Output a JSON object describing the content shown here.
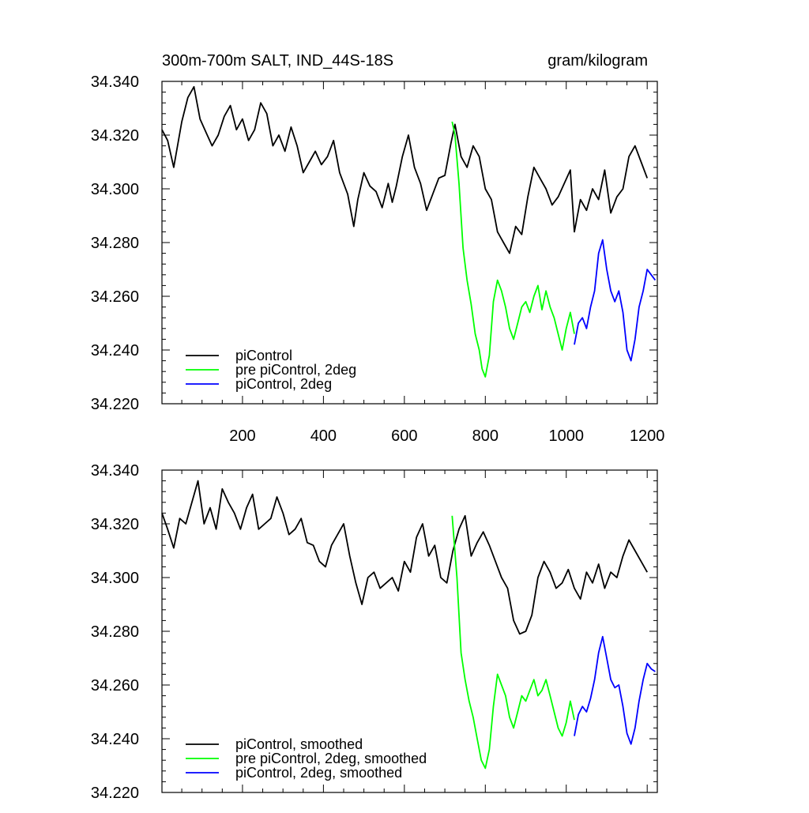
{
  "chart_data": [
    {
      "type": "line",
      "title": "300m-700m SALT, IND_44S-18S",
      "units": "gram/kilogram",
      "xlabel": "",
      "ylabel": "",
      "xlim": [
        1,
        1225
      ],
      "ylim": [
        34.22,
        34.34
      ],
      "x_ticks": [
        200,
        400,
        600,
        800,
        1000,
        1200
      ],
      "x_tick_labels": [
        "200",
        "400",
        "600",
        "800",
        "1000",
        "1200"
      ],
      "y_ticks": [
        34.22,
        34.24,
        34.26,
        34.28,
        34.3,
        34.32,
        34.34
      ],
      "y_tick_labels": [
        "34.220",
        "34.240",
        "34.260",
        "34.280",
        "34.300",
        "34.320",
        "34.340"
      ],
      "grid": false,
      "legend_position": "bottom-left",
      "legend": [
        "piControl",
        "pre piControl, 2deg",
        "piControl, 2deg"
      ],
      "series": [
        {
          "name": "piControl",
          "color": "#000000",
          "x": [
            1,
            15,
            30,
            50,
            65,
            80,
            95,
            110,
            125,
            140,
            155,
            170,
            185,
            200,
            215,
            230,
            245,
            260,
            275,
            290,
            305,
            320,
            335,
            350,
            365,
            380,
            395,
            410,
            425,
            440,
            460,
            475,
            485,
            500,
            515,
            530,
            545,
            560,
            570,
            580,
            595,
            610,
            625,
            640,
            655,
            670,
            685,
            700,
            715,
            725,
            740,
            755,
            770,
            785,
            800,
            815,
            830,
            845,
            860,
            875,
            890,
            905,
            920,
            935,
            950,
            965,
            980,
            995,
            1010,
            1020,
            1035,
            1050,
            1065,
            1080,
            1095,
            1110,
            1125,
            1140,
            1155,
            1170,
            1185,
            1200
          ],
          "y": [
            34.322,
            34.318,
            34.308,
            34.325,
            34.334,
            34.338,
            34.326,
            34.321,
            34.316,
            34.32,
            34.327,
            34.331,
            34.322,
            34.326,
            34.318,
            34.322,
            34.332,
            34.328,
            34.316,
            34.32,
            34.314,
            34.323,
            34.316,
            34.306,
            34.31,
            34.314,
            34.309,
            34.312,
            34.318,
            34.306,
            34.298,
            34.286,
            34.296,
            34.306,
            34.301,
            34.299,
            34.293,
            34.302,
            34.295,
            34.301,
            34.312,
            34.32,
            34.308,
            34.302,
            34.292,
            34.298,
            34.304,
            34.305,
            34.317,
            34.324,
            34.312,
            34.308,
            34.316,
            34.312,
            34.3,
            34.296,
            34.284,
            34.28,
            34.276,
            34.286,
            34.283,
            34.297,
            34.308,
            34.304,
            34.3,
            34.294,
            34.297,
            34.302,
            34.307,
            34.284,
            34.296,
            34.292,
            34.3,
            34.296,
            34.307,
            34.291,
            34.297,
            34.3,
            34.312,
            34.316,
            34.31,
            34.304
          ]
        },
        {
          "name": "pre piControl, 2deg",
          "color": "#00ff00",
          "x": [
            718,
            725,
            735,
            745,
            755,
            765,
            775,
            785,
            792,
            800,
            810,
            820,
            830,
            840,
            850,
            860,
            870,
            880,
            890,
            900,
            910,
            920,
            930,
            940,
            950,
            960,
            970,
            980,
            990,
            1000,
            1010,
            1020
          ],
          "y": [
            34.325,
            34.32,
            34.302,
            34.278,
            34.266,
            34.257,
            34.246,
            34.24,
            34.233,
            34.23,
            34.238,
            34.258,
            34.266,
            34.262,
            34.256,
            34.248,
            34.244,
            34.25,
            34.256,
            34.258,
            34.254,
            34.26,
            34.264,
            34.255,
            34.262,
            34.256,
            34.252,
            34.246,
            34.24,
            34.248,
            34.254,
            34.246
          ]
        },
        {
          "name": "piControl, 2deg",
          "color": "#0000ff",
          "x": [
            1020,
            1030,
            1040,
            1050,
            1060,
            1070,
            1080,
            1090,
            1100,
            1110,
            1120,
            1130,
            1140,
            1150,
            1160,
            1170,
            1180,
            1190,
            1200,
            1210,
            1220
          ],
          "y": [
            34.242,
            34.25,
            34.252,
            34.248,
            34.256,
            34.262,
            34.276,
            34.281,
            34.27,
            34.262,
            34.258,
            34.262,
            34.254,
            34.24,
            34.236,
            34.244,
            34.256,
            34.262,
            34.27,
            34.268,
            34.266
          ]
        }
      ]
    },
    {
      "type": "line",
      "title": "",
      "xlabel": "",
      "ylabel": "",
      "xlim": [
        1,
        1225
      ],
      "ylim": [
        34.22,
        34.34
      ],
      "y_ticks": [
        34.22,
        34.24,
        34.26,
        34.28,
        34.3,
        34.32,
        34.34
      ],
      "y_tick_labels": [
        "34.220",
        "34.240",
        "34.260",
        "34.280",
        "34.300",
        "34.320",
        "34.340"
      ],
      "grid": false,
      "legend_position": "bottom-left",
      "legend": [
        "piControl, smoothed",
        "pre piControl, 2deg, smoothed",
        "piControl, 2deg, smoothed"
      ],
      "series": [
        {
          "name": "piControl, smoothed",
          "color": "#000000",
          "x": [
            1,
            15,
            30,
            45,
            60,
            75,
            90,
            105,
            120,
            135,
            150,
            165,
            180,
            195,
            210,
            225,
            240,
            255,
            270,
            285,
            300,
            315,
            330,
            345,
            360,
            375,
            390,
            405,
            420,
            435,
            450,
            465,
            480,
            495,
            510,
            525,
            540,
            555,
            570,
            585,
            600,
            615,
            630,
            645,
            660,
            675,
            690,
            705,
            720,
            735,
            750,
            765,
            780,
            795,
            810,
            825,
            840,
            855,
            870,
            885,
            900,
            915,
            930,
            945,
            960,
            975,
            990,
            1005,
            1020,
            1035,
            1050,
            1065,
            1080,
            1095,
            1110,
            1125,
            1140,
            1155,
            1170,
            1185,
            1200
          ],
          "y": [
            34.324,
            34.318,
            34.311,
            34.322,
            34.32,
            34.328,
            34.336,
            34.32,
            34.326,
            34.318,
            34.333,
            34.328,
            34.324,
            34.318,
            34.326,
            34.331,
            34.318,
            34.32,
            34.322,
            34.33,
            34.324,
            34.316,
            34.318,
            34.322,
            34.313,
            34.312,
            34.306,
            34.304,
            34.312,
            34.316,
            34.32,
            34.308,
            34.298,
            34.29,
            34.3,
            34.302,
            34.296,
            34.298,
            34.3,
            34.295,
            34.306,
            34.302,
            34.315,
            34.32,
            34.308,
            34.312,
            34.3,
            34.298,
            34.31,
            34.318,
            34.323,
            34.308,
            34.313,
            34.317,
            34.312,
            34.306,
            34.3,
            34.296,
            34.284,
            34.279,
            34.28,
            34.286,
            34.3,
            34.306,
            34.302,
            34.296,
            34.298,
            34.303,
            34.296,
            34.292,
            34.302,
            34.298,
            34.305,
            34.296,
            34.302,
            34.3,
            34.308,
            34.314,
            34.31,
            34.306,
            34.302
          ]
        },
        {
          "name": "pre piControl, 2deg, smoothed",
          "color": "#00ff00",
          "x": [
            718,
            730,
            740,
            750,
            760,
            770,
            780,
            790,
            800,
            810,
            820,
            830,
            840,
            850,
            860,
            870,
            880,
            890,
            900,
            910,
            920,
            930,
            940,
            950,
            960,
            970,
            980,
            990,
            1000,
            1010,
            1020
          ],
          "y": [
            34.323,
            34.3,
            34.272,
            34.262,
            34.254,
            34.248,
            34.24,
            34.232,
            34.229,
            34.236,
            34.252,
            34.264,
            34.26,
            34.256,
            34.248,
            34.244,
            34.25,
            34.256,
            34.254,
            34.258,
            34.262,
            34.256,
            34.258,
            34.262,
            34.256,
            34.25,
            34.244,
            34.241,
            34.246,
            34.254,
            34.247
          ]
        },
        {
          "name": "piControl, 2deg, smoothed",
          "color": "#0000ff",
          "x": [
            1020,
            1030,
            1040,
            1050,
            1060,
            1070,
            1080,
            1090,
            1100,
            1110,
            1120,
            1130,
            1140,
            1150,
            1160,
            1170,
            1180,
            1190,
            1200,
            1210,
            1220
          ],
          "y": [
            34.241,
            34.249,
            34.252,
            34.25,
            34.255,
            34.262,
            34.272,
            34.278,
            34.27,
            34.262,
            34.259,
            34.26,
            34.252,
            34.242,
            34.238,
            34.244,
            34.254,
            34.262,
            34.268,
            34.266,
            34.265
          ]
        }
      ]
    }
  ]
}
